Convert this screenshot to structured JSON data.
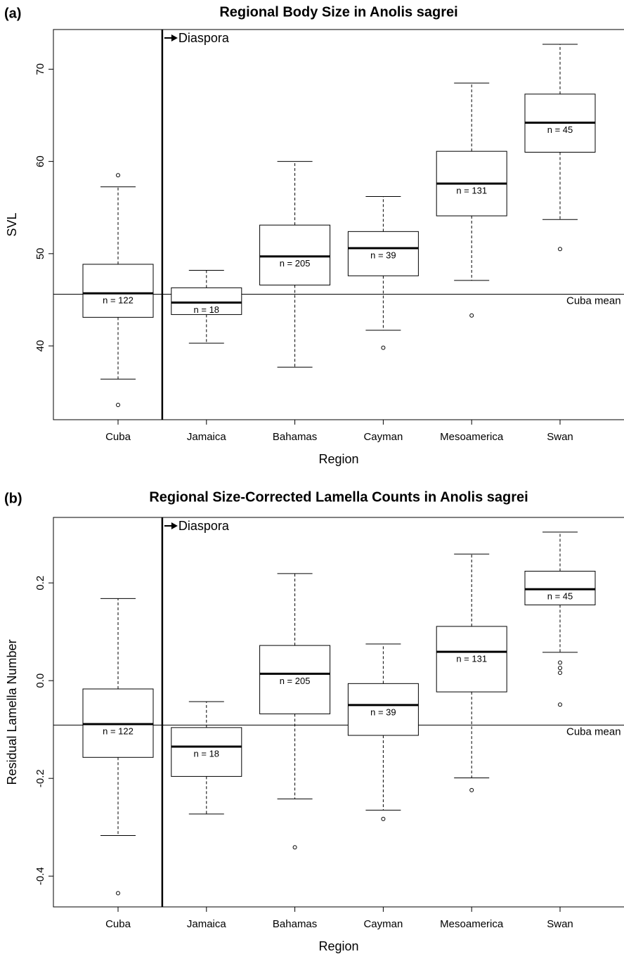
{
  "chart_data": [
    {
      "type": "box",
      "panel": "(a)",
      "title": "Regional Body Size in Anolis sagrei",
      "xlabel": "Region",
      "ylabel": "SVL",
      "categories": [
        "Cuba",
        "Jamaica",
        "Bahamas",
        "Cayman",
        "Mesoamerica",
        "Swan"
      ],
      "n_labels": [
        "n = 122",
        "n = 18",
        "n = 205",
        "n = 39",
        "n = 131",
        "n = 45"
      ],
      "boxes": [
        {
          "whislo": 36.4,
          "q1": 43.1,
          "med": 45.7,
          "q3": 48.85,
          "whishi": 57.25,
          "fliers": [
            58.5,
            33.6
          ]
        },
        {
          "whislo": 40.3,
          "q1": 43.4,
          "med": 44.7,
          "q3": 46.3,
          "whishi": 48.2,
          "fliers": []
        },
        {
          "whislo": 37.7,
          "q1": 46.6,
          "med": 49.7,
          "q3": 53.1,
          "whishi": 60.0,
          "fliers": []
        },
        {
          "whislo": 41.7,
          "q1": 47.6,
          "med": 50.6,
          "q3": 52.4,
          "whishi": 56.2,
          "fliers": [
            39.8
          ]
        },
        {
          "whislo": 47.1,
          "q1": 54.1,
          "med": 57.6,
          "q3": 61.1,
          "whishi": 68.5,
          "fliers": [
            43.3
          ]
        },
        {
          "whislo": 53.7,
          "q1": 61.0,
          "med": 64.2,
          "q3": 67.3,
          "whishi": 72.7,
          "fliers": [
            50.5
          ]
        }
      ],
      "ylim": [
        32,
        74.3
      ],
      "yticks": [
        40,
        50,
        60,
        70
      ],
      "hline": {
        "value": 45.6,
        "label": "Cuba mean"
      },
      "vline_label": "Diaspora"
    },
    {
      "type": "box",
      "panel": "(b)",
      "title": "Regional Size-Corrected Lamella Counts in Anolis sagrei",
      "xlabel": "Region",
      "ylabel": "Residual Lamella Number",
      "categories": [
        "Cuba",
        "Jamaica",
        "Bahamas",
        "Cayman",
        "Mesoamerica",
        "Swan"
      ],
      "n_labels": [
        "n = 122",
        "n = 18",
        "n = 205",
        "n = 39",
        "n = 131",
        "n = 45"
      ],
      "boxes": [
        {
          "whislo": -0.317,
          "q1": -0.157,
          "med": -0.089,
          "q3": -0.017,
          "whishi": 0.168,
          "fliers": [
            -0.435
          ]
        },
        {
          "whislo": -0.273,
          "q1": -0.196,
          "med": -0.135,
          "q3": -0.096,
          "whishi": -0.043,
          "fliers": []
        },
        {
          "whislo": -0.242,
          "q1": -0.068,
          "med": 0.014,
          "q3": 0.072,
          "whishi": 0.219,
          "fliers": [
            -0.341
          ]
        },
        {
          "whislo": -0.265,
          "q1": -0.112,
          "med": -0.05,
          "q3": -0.006,
          "whishi": 0.075,
          "fliers": [
            -0.283
          ]
        },
        {
          "whislo": -0.199,
          "q1": -0.023,
          "med": 0.059,
          "q3": 0.111,
          "whishi": 0.259,
          "fliers": [
            -0.224
          ]
        },
        {
          "whislo": 0.058,
          "q1": 0.155,
          "med": 0.187,
          "q3": 0.224,
          "whishi": 0.304,
          "fliers": [
            0.037,
            0.026,
            0.016,
            -0.049
          ]
        }
      ],
      "ylim": [
        -0.463,
        0.334
      ],
      "yticks": [
        -0.4,
        -0.2,
        {
          "value": 0,
          "label": "0.0"
        },
        0.2
      ],
      "hline": {
        "value": -0.091,
        "label": "Cuba mean"
      },
      "vline_label": "Diaspora"
    }
  ]
}
